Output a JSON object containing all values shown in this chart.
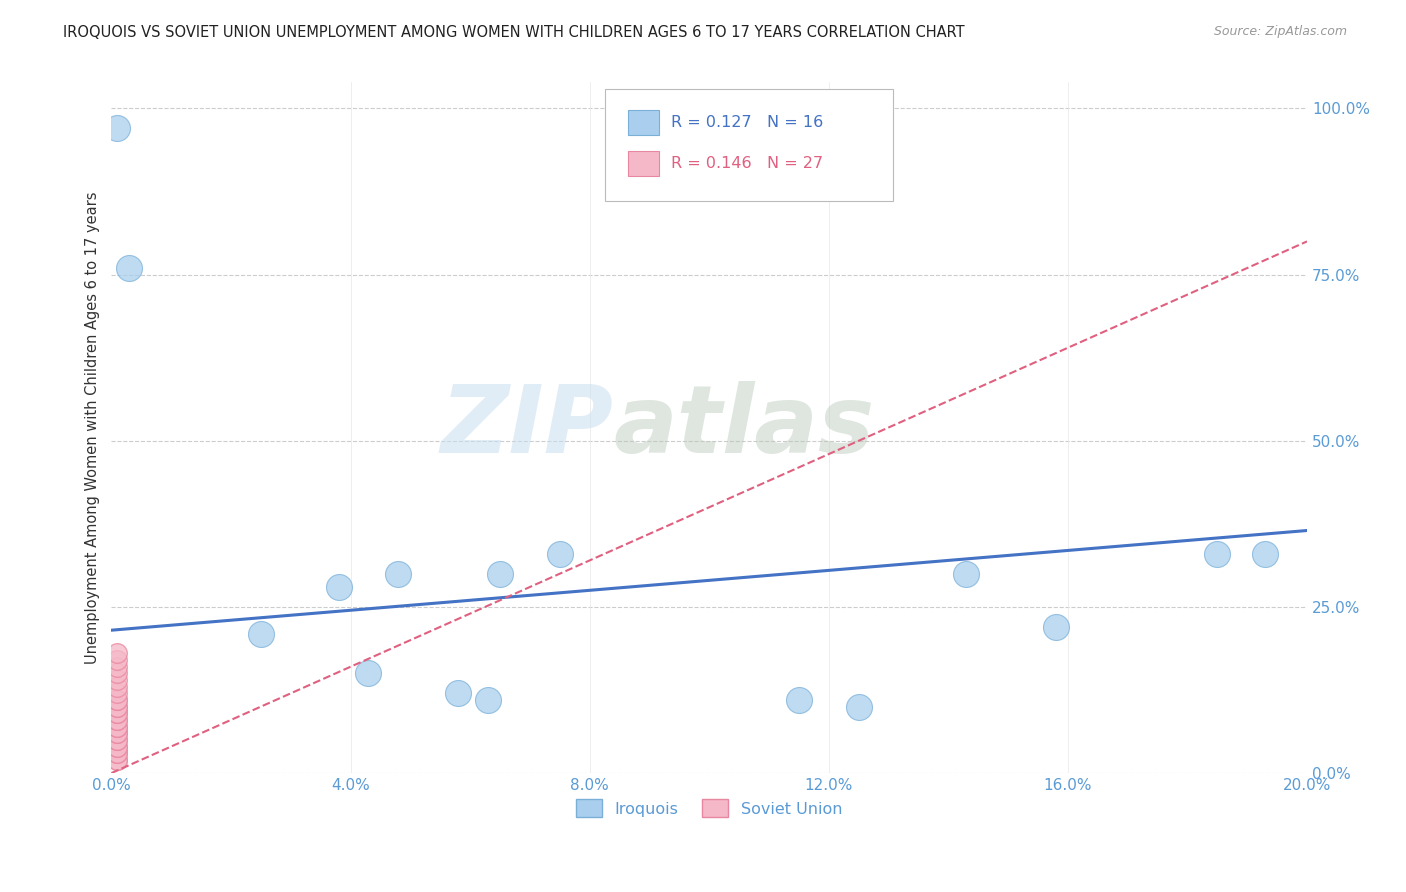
{
  "title": "IROQUOIS VS SOVIET UNION UNEMPLOYMENT AMONG WOMEN WITH CHILDREN AGES 6 TO 17 YEARS CORRELATION CHART",
  "source": "Source: ZipAtlas.com",
  "ylabel": "Unemployment Among Women with Children Ages 6 to 17 years",
  "watermark_zip": "ZIP",
  "watermark_atlas": "atlas",
  "iroquois_r": 0.127,
  "iroquois_n": 16,
  "soviet_r": 0.146,
  "soviet_n": 27,
  "iroquois_color": "#aacfee",
  "soviet_color": "#f5b8c8",
  "iroquois_edge_color": "#7ab0d8",
  "soviet_edge_color": "#e888a0",
  "iroquois_trend_color": "#4472c4",
  "soviet_trend_color": "#e06080",
  "iroquois_x": [
    0.001,
    0.003,
    0.025,
    0.038,
    0.043,
    0.048,
    0.058,
    0.063,
    0.065,
    0.075,
    0.115,
    0.125,
    0.143,
    0.158,
    0.185,
    0.193
  ],
  "iroquois_y": [
    0.97,
    0.76,
    0.21,
    0.28,
    0.15,
    0.3,
    0.12,
    0.11,
    0.3,
    0.33,
    0.11,
    0.1,
    0.3,
    0.22,
    0.33,
    0.33
  ],
  "soviet_x": [
    0.001,
    0.001,
    0.001,
    0.001,
    0.001,
    0.001,
    0.001,
    0.001,
    0.001,
    0.001,
    0.001,
    0.001,
    0.001,
    0.001,
    0.001,
    0.001,
    0.001,
    0.001,
    0.001,
    0.001,
    0.001,
    0.001,
    0.001,
    0.001,
    0.001,
    0.001,
    0.001
  ],
  "soviet_y": [
    0.02,
    0.02,
    0.03,
    0.03,
    0.04,
    0.04,
    0.05,
    0.05,
    0.06,
    0.06,
    0.07,
    0.07,
    0.08,
    0.08,
    0.09,
    0.09,
    0.1,
    0.1,
    0.11,
    0.11,
    0.12,
    0.13,
    0.14,
    0.15,
    0.16,
    0.17,
    0.18
  ],
  "iroquois_trend_x0": 0.0,
  "iroquois_trend_y0": 0.215,
  "iroquois_trend_x1": 0.2,
  "iroquois_trend_y1": 0.365,
  "soviet_trend_x0": 0.0,
  "soviet_trend_y0": 0.0,
  "soviet_trend_x1": 0.2,
  "soviet_trend_y1": 0.8,
  "xlim": [
    0.0,
    0.2
  ],
  "ylim": [
    0.0,
    1.04
  ],
  "xticks": [
    0.0,
    0.04,
    0.08,
    0.12,
    0.16,
    0.2
  ],
  "yticks": [
    0.0,
    0.25,
    0.5,
    0.75,
    1.0
  ],
  "xticklabels": [
    "0.0%",
    "4.0%",
    "8.0%",
    "12.0%",
    "16.0%",
    "20.0%"
  ],
  "yticklabels": [
    "0.0%",
    "25.0%",
    "50.0%",
    "75.0%",
    "100.0%"
  ],
  "legend_label_iroquois": "Iroquois",
  "legend_label_soviet": "Soviet Union",
  "tick_color": "#5b9bd5",
  "grid_color": "#cccccc",
  "axis_color": "#cccccc"
}
